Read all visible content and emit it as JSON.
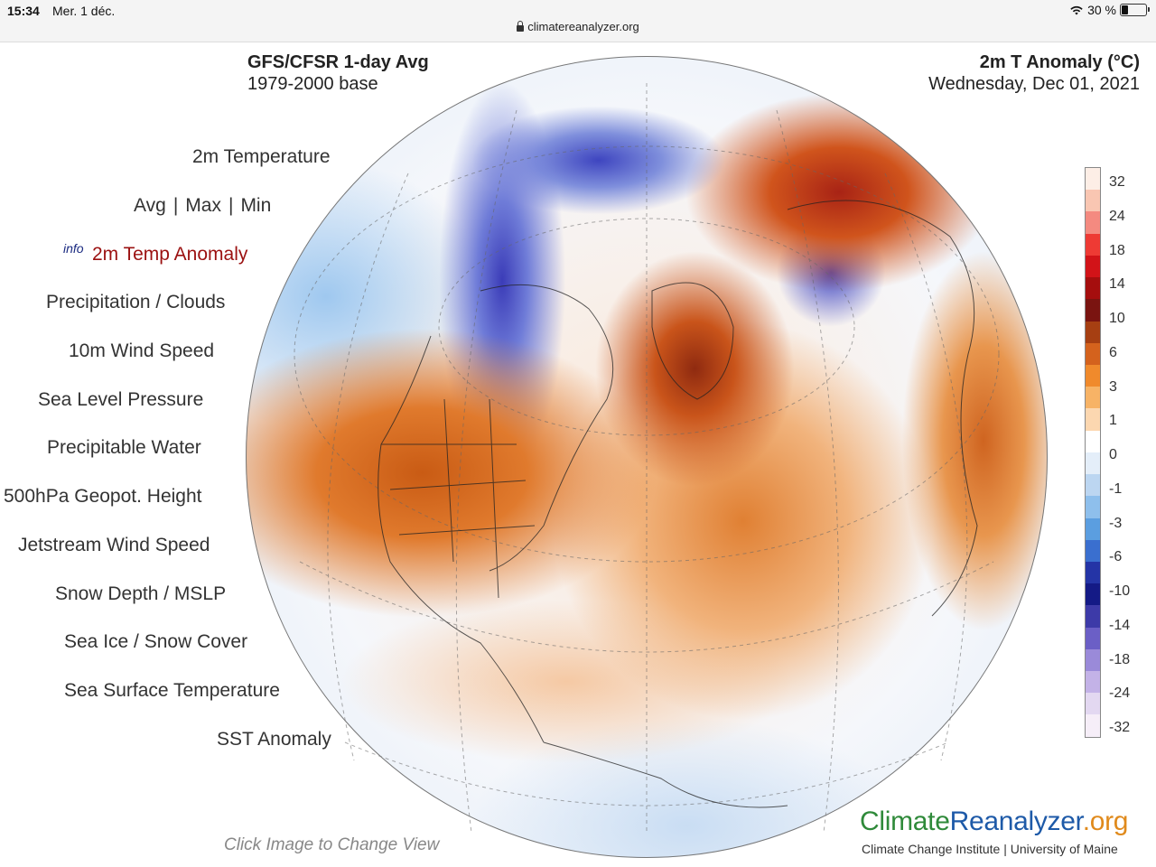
{
  "status_bar": {
    "time": "15:34",
    "date": "Mer. 1 déc.",
    "battery": "30 %",
    "battery_level": 0.3,
    "url": "climatereanalyzer.org"
  },
  "header": {
    "left_title": "GFS/CFSR 1-day Avg",
    "left_subtitle": "1979-2000 base",
    "right_title": "2m T Anomaly (°C)",
    "right_subtitle": "Wednesday, Dec 01, 2021"
  },
  "menu": {
    "info_label": "info",
    "items": [
      "2m Temperature",
      "Avg",
      "Max",
      "Min",
      "2m Temp Anomaly",
      "Precipitation / Clouds",
      "10m Wind Speed",
      "Sea Level Pressure",
      "Precipitable Water",
      "500hPa Geopot. Height",
      "Jetstream Wind Speed",
      "Snow Depth / MSLP",
      "Sea Ice / Snow Cover",
      "Sea Surface Temperature",
      "SST Anomaly"
    ],
    "separator": "|"
  },
  "colorbar": {
    "labels": [
      "32",
      "24",
      "18",
      "14",
      "10",
      "6",
      "3",
      "1",
      "0",
      "-1",
      "-3",
      "-6",
      "-10",
      "-14",
      "-18",
      "-24",
      "-32"
    ],
    "colors": [
      "#fdeee6",
      "#f9c6b2",
      "#f48a80",
      "#ee3a34",
      "#d21318",
      "#a50e0e",
      "#7a1410",
      "#a63f12",
      "#d4621d",
      "#f08a2c",
      "#f7b366",
      "#fcd7b0",
      "#ffffff",
      "#e4eef9",
      "#bcd6f1",
      "#8ebfec",
      "#5b9ee0",
      "#3a6fcf",
      "#2434a6",
      "#141a86",
      "#3d3aa8",
      "#6b5fc6",
      "#9a8ad9",
      "#c3b2e7",
      "#e3d8f1",
      "#f6eef8"
    ]
  },
  "footer": {
    "hint": "Click Image to Change View",
    "logo_part1": "Climate",
    "logo_part2": "Reanalyzer",
    "logo_part3": ".org",
    "logo_sub": "Climate Change Institute | University of Maine"
  }
}
